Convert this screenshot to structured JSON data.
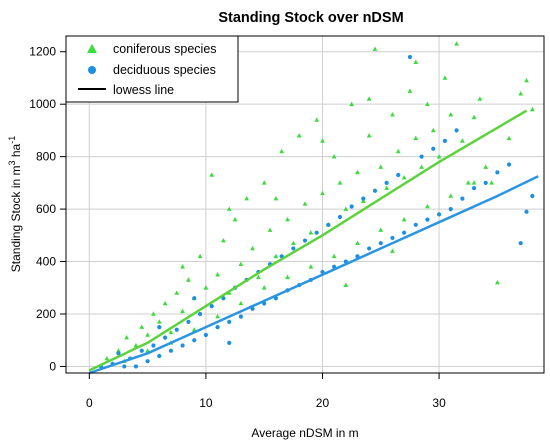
{
  "chart_data": {
    "type": "scatter",
    "title": "Standing Stock over nDSM",
    "xlabel": "Average nDSM in m",
    "ylabel": {
      "main": "Standing Stock in m",
      "sup1": "3",
      "mid": " ha",
      "sup2": "-1"
    },
    "xlim": [
      -2,
      39
    ],
    "ylim": [
      -25,
      1260
    ],
    "xticks": [
      0,
      10,
      20,
      30
    ],
    "yticks": [
      0,
      200,
      400,
      600,
      800,
      1000,
      1200
    ],
    "grid": true,
    "legend_position": "top-left",
    "legend": [
      {
        "label": "coniferous species",
        "marker": "triangle",
        "color": "#3ddc3d"
      },
      {
        "label": "deciduous species",
        "marker": "circle",
        "color": "#1d8fe0"
      },
      {
        "label": "lowess line",
        "marker": "line",
        "color": "#000000"
      }
    ],
    "series": [
      {
        "name": "coniferous species",
        "marker": "triangle",
        "color": "#3ddc3d",
        "lowess": {
          "color": "#5cd23c",
          "x": [
            0,
            5,
            10,
            15,
            20,
            25,
            30,
            35,
            37.5
          ],
          "y": [
            -15,
            90,
            230,
            370,
            500,
            640,
            780,
            910,
            975
          ]
        },
        "points": [
          [
            1.5,
            30
          ],
          [
            2.5,
            60
          ],
          [
            3.2,
            110
          ],
          [
            4,
            80
          ],
          [
            4.5,
            150
          ],
          [
            5,
            120
          ],
          [
            5.5,
            200
          ],
          [
            6,
            170
          ],
          [
            6.5,
            240
          ],
          [
            7,
            130
          ],
          [
            7.5,
            280
          ],
          [
            8,
            210
          ],
          [
            8.5,
            330
          ],
          [
            9,
            260
          ],
          [
            9.5,
            420
          ],
          [
            10,
            300
          ],
          [
            10.5,
            730
          ],
          [
            11,
            350
          ],
          [
            11.5,
            480
          ],
          [
            12,
            280
          ],
          [
            12.5,
            560
          ],
          [
            13,
            390
          ],
          [
            13.5,
            640
          ],
          [
            14,
            450
          ],
          [
            14.5,
            340
          ],
          [
            15,
            700
          ],
          [
            15.5,
            520
          ],
          [
            16,
            420
          ],
          [
            16.5,
            820
          ],
          [
            17,
            560
          ],
          [
            17.5,
            470
          ],
          [
            18,
            880
          ],
          [
            18.5,
            620
          ],
          [
            19,
            510
          ],
          [
            19.5,
            940
          ],
          [
            20,
            660
          ],
          [
            20.5,
            540
          ],
          [
            21,
            800
          ],
          [
            21.5,
            700
          ],
          [
            22,
            600
          ],
          [
            22.5,
            1000
          ],
          [
            23,
            740
          ],
          [
            23.5,
            630
          ],
          [
            24,
            880
          ],
          [
            24.5,
            1210
          ],
          [
            25,
            760
          ],
          [
            25.5,
            680
          ],
          [
            26,
            960
          ],
          [
            26.5,
            820
          ],
          [
            27,
            720
          ],
          [
            27.5,
            1050
          ],
          [
            28,
            870
          ],
          [
            28.5,
            760
          ],
          [
            29,
            1000
          ],
          [
            29.5,
            900
          ],
          [
            30,
            800
          ],
          [
            30.5,
            1100
          ],
          [
            31,
            960
          ],
          [
            31.5,
            1230
          ],
          [
            32,
            860
          ],
          [
            32.5,
            700
          ],
          [
            33,
            950
          ],
          [
            33.5,
            1020
          ],
          [
            34,
            760
          ],
          [
            34.5,
            700
          ],
          [
            35,
            320
          ],
          [
            36,
            870
          ],
          [
            37,
            1040
          ],
          [
            37.5,
            1090
          ],
          [
            38,
            980
          ],
          [
            3,
            20
          ],
          [
            5,
            60
          ],
          [
            7,
            90
          ],
          [
            9,
            140
          ],
          [
            11,
            190
          ],
          [
            13,
            240
          ],
          [
            15,
            300
          ],
          [
            17,
            340
          ],
          [
            19,
            380
          ],
          [
            21,
            420
          ],
          [
            23,
            470
          ],
          [
            25,
            520
          ],
          [
            27,
            560
          ],
          [
            29,
            610
          ],
          [
            31,
            650
          ],
          [
            33,
            700
          ],
          [
            8,
            380
          ],
          [
            12,
            600
          ],
          [
            16,
            640
          ],
          [
            20,
            860
          ],
          [
            24,
            1020
          ],
          [
            28,
            1160
          ],
          [
            22,
            310
          ],
          [
            26,
            440
          ]
        ]
      },
      {
        "name": "deciduous species",
        "marker": "circle",
        "color": "#1d8fe0",
        "lowess": {
          "color": "#2a95e2",
          "x": [
            0,
            5,
            10,
            15,
            20,
            25,
            30,
            35,
            38.5
          ],
          "y": [
            -25,
            50,
            150,
            250,
            350,
            450,
            550,
            650,
            725
          ]
        },
        "points": [
          [
            1,
            0
          ],
          [
            2,
            10
          ],
          [
            3,
            0
          ],
          [
            3.5,
            30
          ],
          [
            4,
            0
          ],
          [
            4.5,
            60
          ],
          [
            5,
            20
          ],
          [
            5.5,
            80
          ],
          [
            6,
            40
          ],
          [
            6.5,
            110
          ],
          [
            7,
            60
          ],
          [
            7.5,
            140
          ],
          [
            8,
            80
          ],
          [
            8.5,
            170
          ],
          [
            9,
            100
          ],
          [
            9.5,
            200
          ],
          [
            10,
            120
          ],
          [
            10.5,
            230
          ],
          [
            11,
            150
          ],
          [
            11.5,
            260
          ],
          [
            12,
            170
          ],
          [
            12.5,
            300
          ],
          [
            13,
            190
          ],
          [
            13.5,
            330
          ],
          [
            14,
            220
          ],
          [
            14.5,
            360
          ],
          [
            15,
            240
          ],
          [
            15.5,
            390
          ],
          [
            16,
            260
          ],
          [
            16.5,
            420
          ],
          [
            17,
            290
          ],
          [
            17.5,
            450
          ],
          [
            18,
            310
          ],
          [
            18.5,
            480
          ],
          [
            19,
            330
          ],
          [
            19.5,
            510
          ],
          [
            20,
            360
          ],
          [
            20.5,
            540
          ],
          [
            21,
            380
          ],
          [
            21.5,
            570
          ],
          [
            22,
            400
          ],
          [
            22.5,
            610
          ],
          [
            23,
            420
          ],
          [
            23.5,
            640
          ],
          [
            24,
            450
          ],
          [
            24.5,
            670
          ],
          [
            25,
            470
          ],
          [
            25.5,
            700
          ],
          [
            26,
            490
          ],
          [
            26.5,
            730
          ],
          [
            27,
            510
          ],
          [
            27.5,
            1180
          ],
          [
            28,
            540
          ],
          [
            28.5,
            800
          ],
          [
            29,
            560
          ],
          [
            29.5,
            830
          ],
          [
            30,
            580
          ],
          [
            30.5,
            860
          ],
          [
            31,
            600
          ],
          [
            31.5,
            900
          ],
          [
            32,
            640
          ],
          [
            33,
            680
          ],
          [
            34,
            700
          ],
          [
            35,
            740
          ],
          [
            36,
            770
          ],
          [
            37,
            470
          ],
          [
            37.5,
            590
          ],
          [
            38,
            650
          ],
          [
            2.5,
            50
          ],
          [
            6,
            150
          ],
          [
            9,
            260
          ],
          [
            12,
            90
          ]
        ]
      }
    ]
  }
}
